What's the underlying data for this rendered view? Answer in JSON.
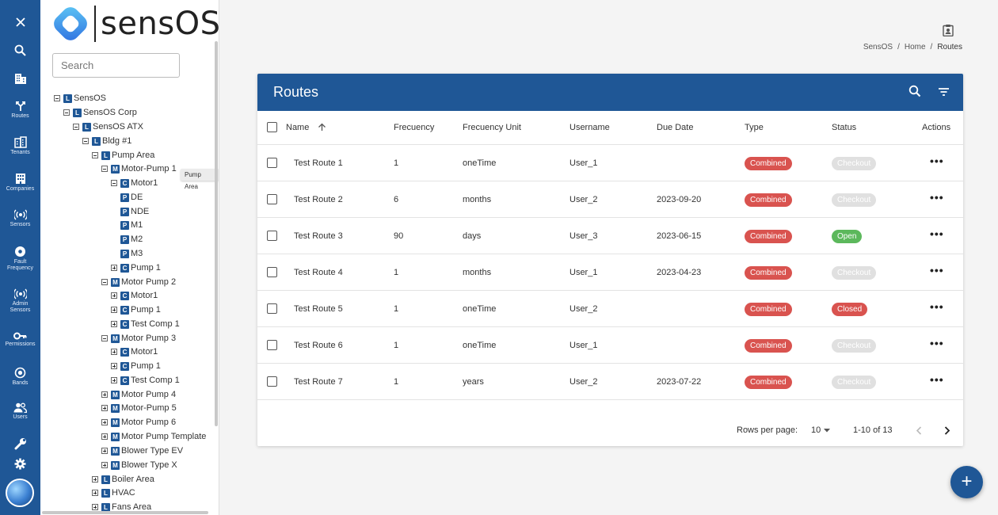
{
  "rail": {
    "items": [
      {
        "label": "",
        "icon": "close-icon"
      },
      {
        "label": "",
        "icon": "search-icon"
      },
      {
        "label": "",
        "icon": "building-icon"
      },
      {
        "label": "Routes",
        "icon": "routes-icon"
      },
      {
        "label": "Tenants",
        "icon": "tenants-icon"
      },
      {
        "label": "Companies",
        "icon": "companies-icon"
      },
      {
        "label": "Sensors",
        "icon": "sensors-icon"
      },
      {
        "label": "Fault Frequency",
        "icon": "fault-frequency-icon"
      },
      {
        "label": "Admin Sensors",
        "icon": "admin-sensors-icon"
      },
      {
        "label": "Permissions",
        "icon": "key-icon"
      },
      {
        "label": "Bands",
        "icon": "bands-icon"
      },
      {
        "label": "Users",
        "icon": "users-icon"
      },
      {
        "label": "",
        "icon": "wrench-icon"
      },
      {
        "label": "",
        "icon": "gear-icon"
      }
    ]
  },
  "brand": {
    "name": "sensOS"
  },
  "search": {
    "placeholder": "Search"
  },
  "tree": [
    {
      "label": "SensOS",
      "badge": "L",
      "toggle": "minus"
    },
    {
      "label": "SensOS Corp",
      "badge": "L",
      "toggle": "minus"
    },
    {
      "label": "SensOS ATX",
      "badge": "L",
      "toggle": "minus"
    },
    {
      "label": "Bldg #1",
      "badge": "L",
      "toggle": "minus"
    },
    {
      "label": "Pump Area",
      "badge": "L",
      "toggle": "minus"
    },
    {
      "label": "Motor-Pump 1",
      "badge": "M",
      "toggle": "minus"
    },
    {
      "label": "Motor1",
      "badge": "C",
      "toggle": "minus"
    },
    {
      "label": "DE",
      "badge": "P",
      "toggle": "none"
    },
    {
      "label": "NDE",
      "badge": "P",
      "toggle": "none"
    },
    {
      "label": "M1",
      "badge": "P",
      "toggle": "none"
    },
    {
      "label": "M2",
      "badge": "P",
      "toggle": "none"
    },
    {
      "label": "M3",
      "badge": "P",
      "toggle": "none"
    },
    {
      "label": "Pump 1",
      "badge": "C",
      "toggle": "plus"
    },
    {
      "label": "Motor Pump 2",
      "badge": "M",
      "toggle": "minus"
    },
    {
      "label": "Motor1",
      "badge": "C",
      "toggle": "plus"
    },
    {
      "label": "Pump 1",
      "badge": "C",
      "toggle": "plus"
    },
    {
      "label": "Test Comp 1",
      "badge": "C",
      "toggle": "plus"
    },
    {
      "label": "Motor Pump 3",
      "badge": "M",
      "toggle": "minus"
    },
    {
      "label": "Motor1",
      "badge": "C",
      "toggle": "plus"
    },
    {
      "label": "Pump 1",
      "badge": "C",
      "toggle": "plus"
    },
    {
      "label": "Test Comp 1",
      "badge": "C",
      "toggle": "plus"
    },
    {
      "label": "Motor Pump 4",
      "badge": "M",
      "toggle": "plus"
    },
    {
      "label": "Motor-Pump 5",
      "badge": "M",
      "toggle": "plus"
    },
    {
      "label": "Motor Pump 6",
      "badge": "M",
      "toggle": "plus"
    },
    {
      "label": "Motor Pump Template",
      "badge": "M",
      "toggle": "plus"
    },
    {
      "label": "Blower Type EV",
      "badge": "M",
      "toggle": "plus"
    },
    {
      "label": "Blower Type X",
      "badge": "M",
      "toggle": "plus"
    },
    {
      "label": "Boiler Area",
      "badge": "L",
      "toggle": "plus"
    },
    {
      "label": "HVAC",
      "badge": "L",
      "toggle": "plus"
    },
    {
      "label": "Fans Area",
      "badge": "L",
      "toggle": "plus"
    }
  ],
  "tooltip": {
    "text": "Pump Area"
  },
  "breadcrumb": {
    "items": [
      "SensOS",
      "Home",
      "Routes"
    ]
  },
  "card": {
    "title": "Routes"
  },
  "table": {
    "columns": [
      "Name",
      "Frecuency",
      "Frecuency Unit",
      "Username",
      "Due Date",
      "Type",
      "Status",
      "Actions"
    ],
    "rows": [
      {
        "name": "Test Route 1",
        "frequency": "1",
        "unit": "oneTime",
        "username": "User_1",
        "due": "",
        "type": "Combined",
        "status": "Checkout"
      },
      {
        "name": "Test Route 2",
        "frequency": "6",
        "unit": "months",
        "username": "User_2",
        "due": "2023-09-20",
        "type": "Combined",
        "status": "Checkout"
      },
      {
        "name": "Test Route 3",
        "frequency": "90",
        "unit": "days",
        "username": "User_3",
        "due": "2023-06-15",
        "type": "Combined",
        "status": "Open"
      },
      {
        "name": "Test Route 4",
        "frequency": "1",
        "unit": "months",
        "username": "User_1",
        "due": "2023-04-23",
        "type": "Combined",
        "status": "Checkout"
      },
      {
        "name": "Test Route 5",
        "frequency": "1",
        "unit": "oneTime",
        "username": "User_2",
        "due": "",
        "type": "Combined",
        "status": "Closed"
      },
      {
        "name": "Test Route 6",
        "frequency": "1",
        "unit": "oneTime",
        "username": "User_1",
        "due": "",
        "type": "Combined",
        "status": "Checkout"
      },
      {
        "name": "Test Route 7",
        "frequency": "1",
        "unit": "years",
        "username": "User_2",
        "due": "2023-07-22",
        "type": "Combined",
        "status": "Checkout"
      }
    ],
    "actions_glyph": "•••"
  },
  "pagination": {
    "rows_label": "Rows per page:",
    "rows_value": "10",
    "range": "1-10 of 13"
  },
  "fab": {
    "glyph": "+"
  },
  "colors": {
    "primary": "#1f5796",
    "type_pill": "#d9534f",
    "open": "#5cb85c",
    "checkout": "#e0e0e0"
  }
}
